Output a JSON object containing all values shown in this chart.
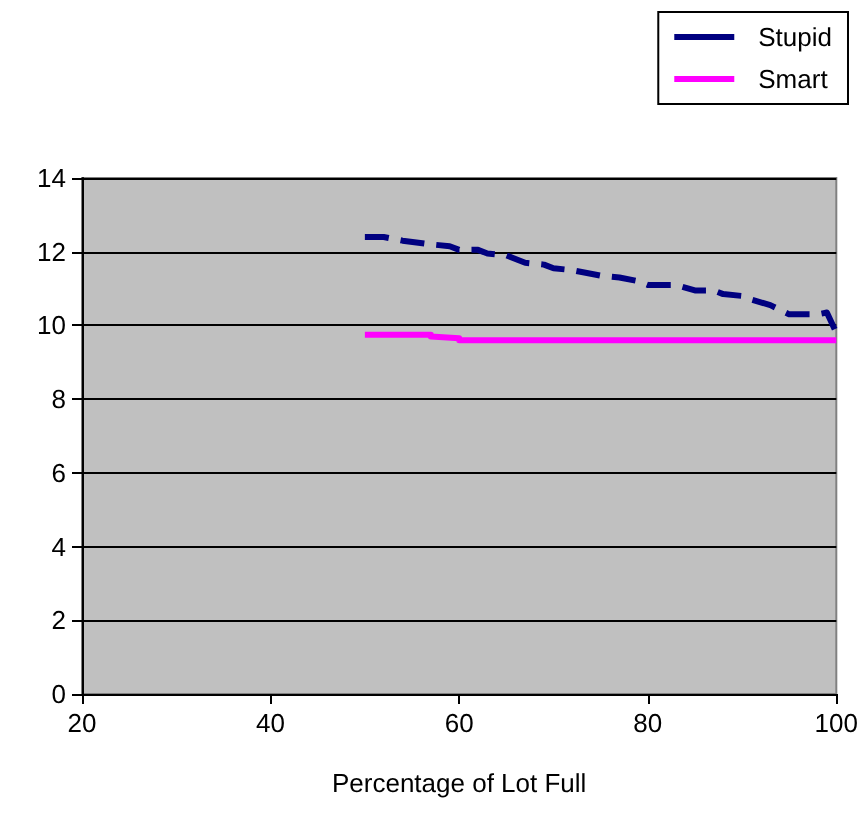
{
  "chart_data": {
    "type": "line",
    "xlabel": "Percentage of Lot Full",
    "xlim": [
      20,
      100
    ],
    "xticks": [
      20,
      40,
      60,
      80,
      100
    ],
    "ylim": [
      0,
      14
    ],
    "yticks": [
      0,
      2,
      4,
      6,
      8,
      10,
      12,
      14
    ],
    "grid": "y",
    "legend": "top right",
    "marker": "none",
    "series": [
      {
        "name": "Stupid",
        "color": "#000080",
        "line_style": "dashed",
        "x": [
          50,
          52,
          53,
          54,
          57,
          59,
          60,
          62,
          63,
          65,
          67,
          69,
          70,
          72,
          73,
          75,
          77,
          79,
          80,
          83,
          85,
          87,
          88,
          90,
          91,
          93,
          95,
          98,
          99,
          100
        ],
        "values": [
          12.4,
          12.4,
          12.35,
          12.3,
          12.2,
          12.15,
          12.05,
          12.05,
          11.95,
          11.9,
          11.7,
          11.65,
          11.55,
          11.5,
          11.45,
          11.35,
          11.3,
          11.2,
          11.1,
          11.1,
          10.95,
          10.95,
          10.85,
          10.8,
          10.7,
          10.55,
          10.3,
          10.3,
          10.35,
          9.8
        ]
      },
      {
        "name": "Smart",
        "color": "#ff00ff",
        "line_style": "solid",
        "x": [
          50,
          57,
          57,
          60,
          60,
          100
        ],
        "values": [
          9.75,
          9.75,
          9.7,
          9.65,
          9.6,
          9.6
        ]
      }
    ]
  }
}
